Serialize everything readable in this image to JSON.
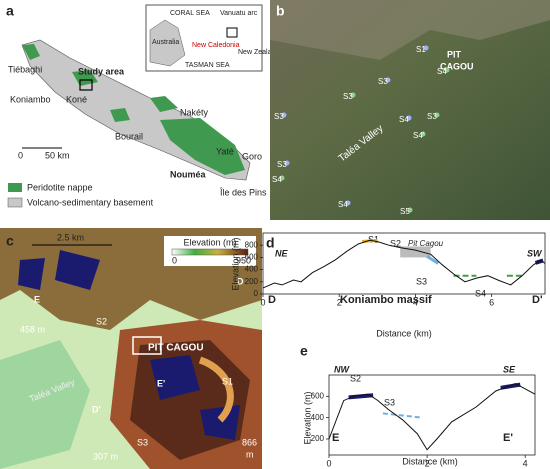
{
  "panel_a": {
    "label": "a",
    "places": [
      "Tiébaghi",
      "Study area",
      "Koniambo",
      "Koné",
      "Nakéty",
      "Bourail",
      "Yaté",
      "Goro",
      "Nouméa",
      "Île des Pins"
    ],
    "scale_start": 0,
    "scale_end": "50 km",
    "inset": [
      "CORAL SEA",
      "Australia",
      "Vanuatu arc",
      "New Caledonia",
      "TASMAN SEA",
      "New Zealand"
    ],
    "legend": [
      "Peridotite nappe",
      "Volcano-sedimentary basement"
    ]
  },
  "panel_b": {
    "label": "b",
    "summit": [
      "PIT",
      "CAGOU"
    ],
    "valley": "Taléa Valley",
    "sites": [
      "S1",
      "S4",
      "S3",
      "S3",
      "S3",
      "S3",
      "S4",
      "S4'",
      "S3",
      "S4",
      "S4",
      "S5"
    ]
  },
  "panel_c": {
    "label": "c",
    "scale": "2.5 km",
    "legend_title": "Elevation (m)",
    "legend_min": 0,
    "legend_max": 950,
    "summit": "PIT CAGOU",
    "valley": "Taléa Valley",
    "sites": [
      "S1",
      "S2",
      "S3"
    ],
    "points": [
      "E",
      "E'",
      "D",
      "D'"
    ],
    "elevations": [
      "458 m",
      "307 m"
    ],
    "elev_866": [
      "866",
      "m"
    ]
  },
  "panel_d": {
    "label": "d",
    "xlabel": "Distance (km)",
    "ylabel": "Elevation (m)",
    "xlim": [
      0,
      7.4
    ],
    "ylim": [
      0,
      1000
    ],
    "xticks": [
      0,
      2,
      4,
      6
    ],
    "yticks": [
      0,
      200,
      400,
      600,
      800
    ],
    "ends": [
      "NE",
      "SW"
    ],
    "points": [
      "D",
      "D'"
    ],
    "massif": "Koniambo massif",
    "sites": [
      "S1",
      "S2",
      "S3",
      "S4"
    ],
    "pit": "Pit Cagou",
    "x": [
      0,
      0.3,
      0.5,
      0.8,
      1,
      1.3,
      1.6,
      1.9,
      2.2,
      2.5,
      2.8,
      3.0,
      3.3,
      3.6,
      4.0,
      4.4,
      4.7,
      5.0,
      5.3,
      5.6,
      5.9,
      6.2,
      6.5,
      6.8,
      7.1,
      7.3,
      7.4
    ],
    "values": [
      100,
      180,
      150,
      230,
      200,
      350,
      450,
      560,
      700,
      820,
      880,
      860,
      800,
      760,
      720,
      650,
      480,
      330,
      200,
      260,
      300,
      220,
      150,
      300,
      480,
      550,
      500
    ]
  },
  "panel_e": {
    "label": "e",
    "xlabel": "Distance (km)",
    "ylabel": "Elevation (m)",
    "xlim": [
      0,
      4.2
    ],
    "ylim": [
      50,
      800
    ],
    "xticks": [
      0,
      2,
      4
    ],
    "yticks": [
      200,
      400,
      600
    ],
    "ends": [
      "NW",
      "SE"
    ],
    "points": [
      "E",
      "E'"
    ],
    "sites": [
      "S2",
      "S3"
    ],
    "x": [
      0,
      0.3,
      0.5,
      0.8,
      1,
      1.2,
      1.5,
      1.8,
      2,
      2.2,
      2.5,
      3,
      3.4,
      3.8,
      4.2
    ],
    "values": [
      200,
      560,
      600,
      620,
      560,
      480,
      380,
      250,
      100,
      200,
      360,
      500,
      650,
      720,
      620
    ]
  }
}
